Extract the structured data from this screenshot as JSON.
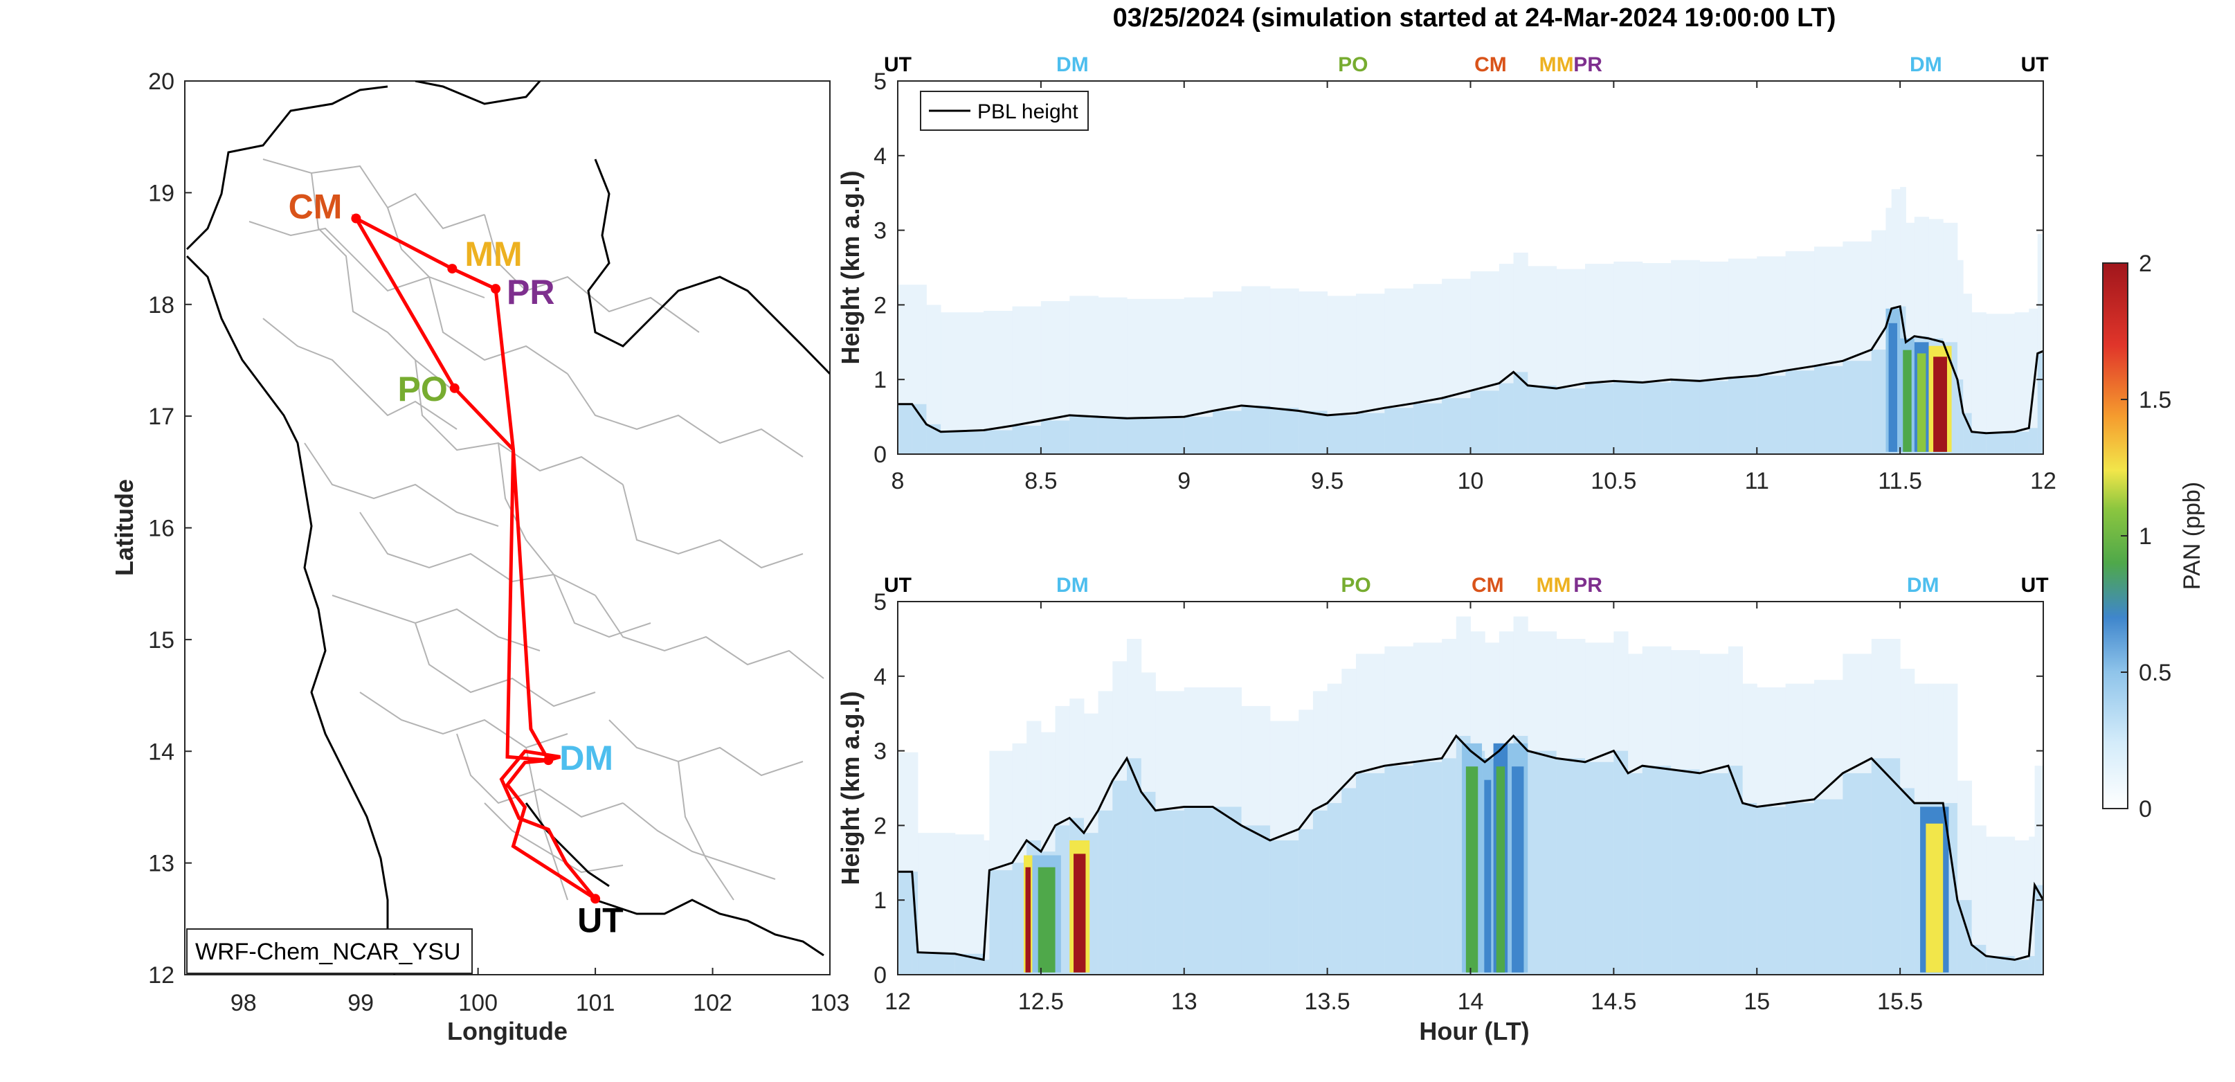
{
  "title": "03/25/2024 (simulation started at 24-Mar-2024 19:00:00 LT)",
  "colors": {
    "CM": "#d95319",
    "MM": "#edb120",
    "PR": "#7e2f8e",
    "PO": "#77ac30",
    "DM": "#4dbeee",
    "UT": "#000000",
    "route": "#ff0000",
    "border": "#b3b3b3",
    "country": "#000000"
  },
  "map": {
    "xlabel": "Longitude",
    "ylabel": "Latitude",
    "xlim": [
      97.5,
      103
    ],
    "ylim": [
      12,
      20
    ],
    "xticks": [
      "98",
      "99",
      "100",
      "101",
      "102",
      "103"
    ],
    "yticks": [
      "12",
      "13",
      "14",
      "15",
      "16",
      "17",
      "18",
      "19",
      "20"
    ],
    "model_label": "WRF-Chem_NCAR_YSU",
    "sites": [
      {
        "code": "CM",
        "lon": 98.96,
        "lat": 18.77
      },
      {
        "code": "MM",
        "lon": 99.78,
        "lat": 18.32
      },
      {
        "code": "PR",
        "lon": 100.15,
        "lat": 18.14
      },
      {
        "code": "PO",
        "lon": 99.8,
        "lat": 17.25
      },
      {
        "code": "DM",
        "lon": 100.6,
        "lat": 13.92
      },
      {
        "code": "UT",
        "lon": 101.0,
        "lat": 12.68
      }
    ],
    "route": [
      [
        101.0,
        12.68
      ],
      [
        100.3,
        13.15
      ],
      [
        100.4,
        13.5
      ],
      [
        100.25,
        13.7
      ],
      [
        100.4,
        13.9
      ],
      [
        100.6,
        13.92
      ],
      [
        100.25,
        13.95
      ],
      [
        100.3,
        16.7
      ],
      [
        99.8,
        17.25
      ],
      [
        98.96,
        18.77
      ],
      [
        99.78,
        18.32
      ],
      [
        100.15,
        18.14
      ],
      [
        100.3,
        16.7
      ],
      [
        100.45,
        14.2
      ],
      [
        100.6,
        13.92
      ],
      [
        100.7,
        13.95
      ],
      [
        100.4,
        14.0
      ],
      [
        100.2,
        13.75
      ],
      [
        100.35,
        13.4
      ],
      [
        100.6,
        13.3
      ],
      [
        100.75,
        13.0
      ],
      [
        101.0,
        12.68
      ]
    ]
  },
  "chart_data": [
    {
      "type": "heatmap",
      "panel": "top",
      "ylabel": "Height (km a.g.l)",
      "xlim": [
        8,
        12
      ],
      "ylim": [
        0,
        5
      ],
      "xticks": [
        "8",
        "8.5",
        "9",
        "9.5",
        "10",
        "10.5",
        "11",
        "11.5",
        "12"
      ],
      "yticks": [
        "0",
        "1",
        "2",
        "3",
        "4",
        "5"
      ],
      "legend": "PBL height",
      "flight_labels": [
        {
          "text": "UT",
          "x": 8.0
        },
        {
          "text": "DM",
          "x": 8.61
        },
        {
          "text": "PO",
          "x": 9.59
        },
        {
          "text": "CM",
          "x": 10.07
        },
        {
          "text": "MM",
          "x": 10.3
        },
        {
          "text": "PR",
          "x": 10.41
        },
        {
          "text": "DM",
          "x": 11.59
        },
        {
          "text": "UT",
          "x": 11.97
        }
      ],
      "pbl_height": [
        [
          8.0,
          0.67
        ],
        [
          8.05,
          0.67
        ],
        [
          8.1,
          0.4
        ],
        [
          8.15,
          0.3
        ],
        [
          8.3,
          0.32
        ],
        [
          8.4,
          0.38
        ],
        [
          8.5,
          0.45
        ],
        [
          8.6,
          0.52
        ],
        [
          8.7,
          0.5
        ],
        [
          8.8,
          0.48
        ],
        [
          9.0,
          0.5
        ],
        [
          9.1,
          0.58
        ],
        [
          9.2,
          0.65
        ],
        [
          9.3,
          0.62
        ],
        [
          9.4,
          0.58
        ],
        [
          9.5,
          0.52
        ],
        [
          9.6,
          0.55
        ],
        [
          9.7,
          0.62
        ],
        [
          9.8,
          0.68
        ],
        [
          9.9,
          0.75
        ],
        [
          10.0,
          0.85
        ],
        [
          10.1,
          0.95
        ],
        [
          10.15,
          1.1
        ],
        [
          10.2,
          0.92
        ],
        [
          10.3,
          0.88
        ],
        [
          10.4,
          0.95
        ],
        [
          10.5,
          0.98
        ],
        [
          10.6,
          0.96
        ],
        [
          10.7,
          1.0
        ],
        [
          10.8,
          0.98
        ],
        [
          10.9,
          1.02
        ],
        [
          11.0,
          1.05
        ],
        [
          11.1,
          1.12
        ],
        [
          11.2,
          1.18
        ],
        [
          11.3,
          1.25
        ],
        [
          11.4,
          1.4
        ],
        [
          11.45,
          1.7
        ],
        [
          11.47,
          1.95
        ],
        [
          11.5,
          1.98
        ],
        [
          11.52,
          1.5
        ],
        [
          11.55,
          1.58
        ],
        [
          11.6,
          1.55
        ],
        [
          11.65,
          1.5
        ],
        [
          11.7,
          1.0
        ],
        [
          11.72,
          0.55
        ],
        [
          11.75,
          0.3
        ],
        [
          11.8,
          0.28
        ],
        [
          11.9,
          0.3
        ],
        [
          11.95,
          0.35
        ],
        [
          11.98,
          1.35
        ],
        [
          12.0,
          1.38
        ]
      ],
      "pan_columns": [
        {
          "x0": 11.45,
          "x1": 11.5,
          "top": 1.95,
          "peak": 0.55
        },
        {
          "x0": 11.5,
          "x1": 11.55,
          "top": 1.55,
          "peak": 0.75
        },
        {
          "x0": 11.55,
          "x1": 11.6,
          "top": 1.5,
          "peak": 1.05
        },
        {
          "x0": 11.6,
          "x1": 11.68,
          "top": 1.45,
          "peak": 1.95
        }
      ]
    },
    {
      "type": "heatmap",
      "panel": "bottom",
      "ylabel": "Height (km a.g.l)",
      "xlabel": "Hour (LT)",
      "xlim": [
        12,
        16
      ],
      "ylim": [
        0,
        5
      ],
      "xticks": [
        "12",
        "12.5",
        "13",
        "13.5",
        "14",
        "14.5",
        "15",
        "15.5"
      ],
      "yticks": [
        "0",
        "1",
        "2",
        "3",
        "4",
        "5"
      ],
      "flight_labels": [
        {
          "text": "UT",
          "x": 12.0
        },
        {
          "text": "DM",
          "x": 12.61
        },
        {
          "text": "PO",
          "x": 13.6
        },
        {
          "text": "CM",
          "x": 14.06
        },
        {
          "text": "MM",
          "x": 14.29
        },
        {
          "text": "PR",
          "x": 14.41
        },
        {
          "text": "DM",
          "x": 15.58
        },
        {
          "text": "UT",
          "x": 15.97
        }
      ],
      "pbl_height": [
        [
          12.0,
          1.38
        ],
        [
          12.05,
          1.38
        ],
        [
          12.07,
          0.3
        ],
        [
          12.2,
          0.28
        ],
        [
          12.3,
          0.2
        ],
        [
          12.32,
          1.4
        ],
        [
          12.4,
          1.5
        ],
        [
          12.45,
          1.8
        ],
        [
          12.5,
          1.65
        ],
        [
          12.55,
          2.0
        ],
        [
          12.6,
          2.1
        ],
        [
          12.65,
          1.9
        ],
        [
          12.7,
          2.2
        ],
        [
          12.75,
          2.6
        ],
        [
          12.8,
          2.9
        ],
        [
          12.85,
          2.45
        ],
        [
          12.9,
          2.2
        ],
        [
          13.0,
          2.25
        ],
        [
          13.1,
          2.25
        ],
        [
          13.2,
          2.0
        ],
        [
          13.3,
          1.8
        ],
        [
          13.4,
          1.95
        ],
        [
          13.45,
          2.2
        ],
        [
          13.5,
          2.3
        ],
        [
          13.55,
          2.5
        ],
        [
          13.6,
          2.7
        ],
        [
          13.7,
          2.8
        ],
        [
          13.8,
          2.85
        ],
        [
          13.9,
          2.9
        ],
        [
          13.95,
          3.2
        ],
        [
          14.0,
          3.0
        ],
        [
          14.05,
          2.85
        ],
        [
          14.1,
          3.0
        ],
        [
          14.15,
          3.2
        ],
        [
          14.2,
          3.0
        ],
        [
          14.3,
          2.9
        ],
        [
          14.4,
          2.85
        ],
        [
          14.5,
          3.0
        ],
        [
          14.55,
          2.7
        ],
        [
          14.6,
          2.8
        ],
        [
          14.7,
          2.75
        ],
        [
          14.8,
          2.7
        ],
        [
          14.9,
          2.8
        ],
        [
          14.95,
          2.3
        ],
        [
          15.0,
          2.25
        ],
        [
          15.1,
          2.3
        ],
        [
          15.2,
          2.35
        ],
        [
          15.3,
          2.7
        ],
        [
          15.4,
          2.9
        ],
        [
          15.5,
          2.5
        ],
        [
          15.55,
          2.3
        ],
        [
          15.6,
          2.3
        ],
        [
          15.65,
          2.3
        ],
        [
          15.7,
          1.0
        ],
        [
          15.75,
          0.4
        ],
        [
          15.8,
          0.25
        ],
        [
          15.9,
          0.2
        ],
        [
          15.95,
          0.25
        ],
        [
          15.97,
          1.2
        ],
        [
          16.0,
          1.0
        ]
      ],
      "pan_columns": [
        {
          "x0": 12.44,
          "x1": 12.47,
          "top": 1.6,
          "peak": 1.9
        },
        {
          "x0": 12.47,
          "x1": 12.57,
          "top": 1.6,
          "peak": 0.8
        },
        {
          "x0": 12.6,
          "x1": 12.67,
          "top": 1.8,
          "peak": 1.95
        },
        {
          "x0": 13.97,
          "x1": 14.04,
          "top": 3.1,
          "peak": 0.8
        },
        {
          "x0": 14.04,
          "x1": 14.08,
          "top": 2.9,
          "peak": 0.55
        },
        {
          "x0": 14.08,
          "x1": 14.13,
          "top": 3.1,
          "peak": 0.85
        },
        {
          "x0": 14.13,
          "x1": 14.2,
          "top": 3.1,
          "peak": 0.6
        },
        {
          "x0": 15.57,
          "x1": 15.67,
          "top": 2.25,
          "peak": 1.15
        }
      ]
    }
  ],
  "colorbar": {
    "label": "PAN (ppb)",
    "ticks": [
      "0",
      "0.5",
      "1",
      "1.5",
      "2"
    ],
    "range": [
      0,
      2
    ]
  }
}
